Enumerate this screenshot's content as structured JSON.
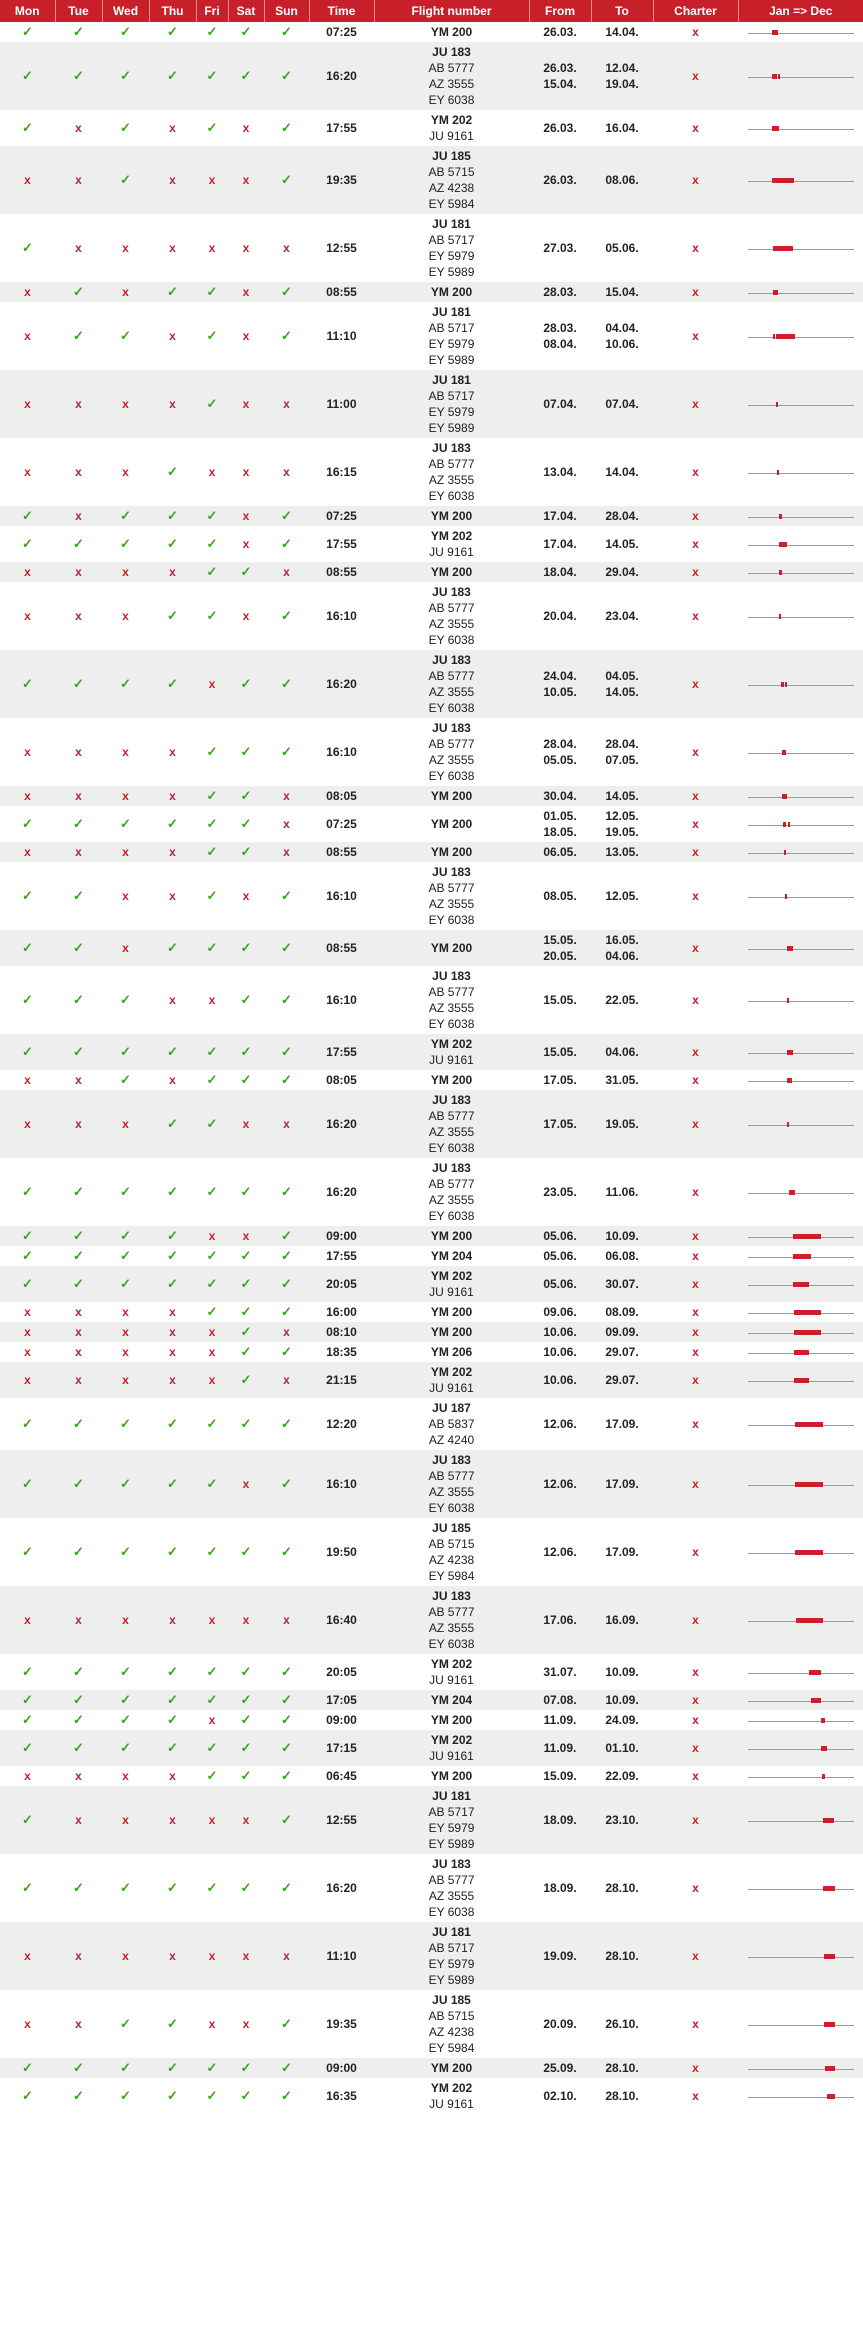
{
  "headers": [
    "Mon",
    "Tue",
    "Wed",
    "Thu",
    "Fri",
    "Sat",
    "Sun",
    "Time",
    "Flight number",
    "From",
    "To",
    "Charter",
    "Jan => Dec"
  ],
  "yes_symbol": "✓",
  "no_symbol": "x",
  "accent_color": "#c8202b",
  "rows": [
    {
      "days": "1111111",
      "time": "07:25",
      "flights": [
        "YM 200"
      ],
      "from": [
        "26.03."
      ],
      "to": [
        "14.04."
      ]
    },
    {
      "days": "1111111",
      "time": "16:20",
      "flights": [
        "JU 183",
        "AB 5777",
        "AZ 3555",
        "EY 6038"
      ],
      "from": [
        "26.03.",
        "15.04."
      ],
      "to": [
        "12.04.",
        "19.04."
      ]
    },
    {
      "days": "1010101",
      "time": "17:55",
      "flights": [
        "YM 202",
        "JU 9161"
      ],
      "from": [
        "26.03."
      ],
      "to": [
        "16.04."
      ]
    },
    {
      "days": "0010001",
      "time": "19:35",
      "flights": [
        "JU 185",
        "AB 5715",
        "AZ 4238",
        "EY 5984"
      ],
      "from": [
        "26.03."
      ],
      "to": [
        "08.06."
      ]
    },
    {
      "days": "1000000",
      "time": "12:55",
      "flights": [
        "JU 181",
        "AB 5717",
        "EY 5979",
        "EY 5989"
      ],
      "from": [
        "27.03."
      ],
      "to": [
        "05.06."
      ]
    },
    {
      "days": "0101101",
      "time": "08:55",
      "flights": [
        "YM 200"
      ],
      "from": [
        "28.03."
      ],
      "to": [
        "15.04."
      ]
    },
    {
      "days": "0110101",
      "time": "11:10",
      "flights": [
        "JU 181",
        "AB 5717",
        "EY 5979",
        "EY 5989"
      ],
      "from": [
        "28.03.",
        "08.04."
      ],
      "to": [
        "04.04.",
        "10.06."
      ]
    },
    {
      "days": "0000100",
      "time": "11:00",
      "flights": [
        "JU 181",
        "AB 5717",
        "EY 5979",
        "EY 5989"
      ],
      "from": [
        "07.04."
      ],
      "to": [
        "07.04."
      ]
    },
    {
      "days": "0001000",
      "time": "16:15",
      "flights": [
        "JU 183",
        "AB 5777",
        "AZ 3555",
        "EY 6038"
      ],
      "from": [
        "13.04."
      ],
      "to": [
        "14.04."
      ]
    },
    {
      "days": "1011101",
      "time": "07:25",
      "flights": [
        "YM 200"
      ],
      "from": [
        "17.04."
      ],
      "to": [
        "28.04."
      ]
    },
    {
      "days": "1111101",
      "time": "17:55",
      "flights": [
        "YM 202",
        "JU 9161"
      ],
      "from": [
        "17.04."
      ],
      "to": [
        "14.05."
      ]
    },
    {
      "days": "0000110",
      "time": "08:55",
      "flights": [
        "YM 200"
      ],
      "from": [
        "18.04."
      ],
      "to": [
        "29.04."
      ]
    },
    {
      "days": "0001101",
      "time": "16:10",
      "flights": [
        "JU 183",
        "AB 5777",
        "AZ 3555",
        "EY 6038"
      ],
      "from": [
        "20.04."
      ],
      "to": [
        "23.04."
      ]
    },
    {
      "days": "1111011",
      "time": "16:20",
      "flights": [
        "JU 183",
        "AB 5777",
        "AZ 3555",
        "EY 6038"
      ],
      "from": [
        "24.04.",
        "10.05."
      ],
      "to": [
        "04.05.",
        "14.05."
      ]
    },
    {
      "days": "0000111",
      "time": "16:10",
      "flights": [
        "JU 183",
        "AB 5777",
        "AZ 3555",
        "EY 6038"
      ],
      "from": [
        "28.04.",
        "05.05."
      ],
      "to": [
        "28.04.",
        "07.05."
      ]
    },
    {
      "days": "0000110",
      "time": "08:05",
      "flights": [
        "YM 200"
      ],
      "from": [
        "30.04."
      ],
      "to": [
        "14.05."
      ]
    },
    {
      "days": "1111110",
      "time": "07:25",
      "flights": [
        "YM 200"
      ],
      "from": [
        "01.05.",
        "18.05."
      ],
      "to": [
        "12.05.",
        "19.05."
      ]
    },
    {
      "days": "0000110",
      "time": "08:55",
      "flights": [
        "YM 200"
      ],
      "from": [
        "06.05."
      ],
      "to": [
        "13.05."
      ]
    },
    {
      "days": "1100101",
      "time": "16:10",
      "flights": [
        "JU 183",
        "AB 5777",
        "AZ 3555",
        "EY 6038"
      ],
      "from": [
        "08.05."
      ],
      "to": [
        "12.05."
      ]
    },
    {
      "days": "1101111",
      "time": "08:55",
      "flights": [
        "YM 200"
      ],
      "from": [
        "15.05.",
        "20.05."
      ],
      "to": [
        "16.05.",
        "04.06."
      ]
    },
    {
      "days": "1110011",
      "time": "16:10",
      "flights": [
        "JU 183",
        "AB 5777",
        "AZ 3555",
        "EY 6038"
      ],
      "from": [
        "15.05."
      ],
      "to": [
        "22.05."
      ]
    },
    {
      "days": "1111111",
      "time": "17:55",
      "flights": [
        "YM 202",
        "JU 9161"
      ],
      "from": [
        "15.05."
      ],
      "to": [
        "04.06."
      ]
    },
    {
      "days": "0010111",
      "time": "08:05",
      "flights": [
        "YM 200"
      ],
      "from": [
        "17.05."
      ],
      "to": [
        "31.05."
      ]
    },
    {
      "days": "0001100",
      "time": "16:20",
      "flights": [
        "JU 183",
        "AB 5777",
        "AZ 3555",
        "EY 6038"
      ],
      "from": [
        "17.05."
      ],
      "to": [
        "19.05."
      ]
    },
    {
      "days": "1111111",
      "time": "16:20",
      "flights": [
        "JU 183",
        "AB 5777",
        "AZ 3555",
        "EY 6038"
      ],
      "from": [
        "23.05."
      ],
      "to": [
        "11.06."
      ]
    },
    {
      "days": "1111001",
      "time": "09:00",
      "flights": [
        "YM 200"
      ],
      "from": [
        "05.06."
      ],
      "to": [
        "10.09."
      ]
    },
    {
      "days": "1111111",
      "time": "17:55",
      "flights": [
        "YM 204"
      ],
      "from": [
        "05.06."
      ],
      "to": [
        "06.08."
      ]
    },
    {
      "days": "1111111",
      "time": "20:05",
      "flights": [
        "YM 202",
        "JU 9161"
      ],
      "from": [
        "05.06."
      ],
      "to": [
        "30.07."
      ]
    },
    {
      "days": "0000111",
      "time": "16:00",
      "flights": [
        "YM 200"
      ],
      "from": [
        "09.06."
      ],
      "to": [
        "08.09."
      ]
    },
    {
      "days": "0000010",
      "time": "08:10",
      "flights": [
        "YM 200"
      ],
      "from": [
        "10.06."
      ],
      "to": [
        "09.09."
      ]
    },
    {
      "days": "0000011",
      "time": "18:35",
      "flights": [
        "YM 206"
      ],
      "from": [
        "10.06."
      ],
      "to": [
        "29.07."
      ]
    },
    {
      "days": "0000010",
      "time": "21:15",
      "flights": [
        "YM 202",
        "JU 9161"
      ],
      "from": [
        "10.06."
      ],
      "to": [
        "29.07."
      ]
    },
    {
      "days": "1111111",
      "time": "12:20",
      "flights": [
        "JU 187",
        "AB 5837",
        "AZ 4240"
      ],
      "from": [
        "12.06."
      ],
      "to": [
        "17.09."
      ]
    },
    {
      "days": "1111101",
      "time": "16:10",
      "flights": [
        "JU 183",
        "AB 5777",
        "AZ 3555",
        "EY 6038"
      ],
      "from": [
        "12.06."
      ],
      "to": [
        "17.09."
      ]
    },
    {
      "days": "1111111",
      "time": "19:50",
      "flights": [
        "JU 185",
        "AB 5715",
        "AZ 4238",
        "EY 5984"
      ],
      "from": [
        "12.06."
      ],
      "to": [
        "17.09."
      ]
    },
    {
      "days": "0000000",
      "time": "16:40",
      "flights": [
        "JU 183",
        "AB 5777",
        "AZ 3555",
        "EY 6038"
      ],
      "from": [
        "17.06."
      ],
      "to": [
        "16.09."
      ]
    },
    {
      "days": "1111111",
      "time": "20:05",
      "flights": [
        "YM 202",
        "JU 9161"
      ],
      "from": [
        "31.07."
      ],
      "to": [
        "10.09."
      ]
    },
    {
      "days": "1111111",
      "time": "17:05",
      "flights": [
        "YM 204"
      ],
      "from": [
        "07.08."
      ],
      "to": [
        "10.09."
      ]
    },
    {
      "days": "1111011",
      "time": "09:00",
      "flights": [
        "YM 200"
      ],
      "from": [
        "11.09."
      ],
      "to": [
        "24.09."
      ]
    },
    {
      "days": "1111111",
      "time": "17:15",
      "flights": [
        "YM 202",
        "JU 9161"
      ],
      "from": [
        "11.09."
      ],
      "to": [
        "01.10."
      ]
    },
    {
      "days": "0000111",
      "time": "06:45",
      "flights": [
        "YM 200"
      ],
      "from": [
        "15.09."
      ],
      "to": [
        "22.09."
      ]
    },
    {
      "days": "1000001",
      "time": "12:55",
      "flights": [
        "JU 181",
        "AB 5717",
        "EY 5979",
        "EY 5989"
      ],
      "from": [
        "18.09."
      ],
      "to": [
        "23.10."
      ]
    },
    {
      "days": "1111111",
      "time": "16:20",
      "flights": [
        "JU 183",
        "AB 5777",
        "AZ 3555",
        "EY 6038"
      ],
      "from": [
        "18.09."
      ],
      "to": [
        "28.10."
      ]
    },
    {
      "days": "0000000",
      "time": "11:10",
      "flights": [
        "JU 181",
        "AB 5717",
        "EY 5979",
        "EY 5989"
      ],
      "from": [
        "19.09."
      ],
      "to": [
        "28.10."
      ]
    },
    {
      "days": "0011001",
      "time": "19:35",
      "flights": [
        "JU 185",
        "AB 5715",
        "AZ 4238",
        "EY 5984"
      ],
      "from": [
        "20.09."
      ],
      "to": [
        "26.10."
      ]
    },
    {
      "days": "1111111",
      "time": "09:00",
      "flights": [
        "YM 200"
      ],
      "from": [
        "25.09."
      ],
      "to": [
        "28.10."
      ]
    },
    {
      "days": "1111111",
      "time": "16:35",
      "flights": [
        "YM 202",
        "JU 9161"
      ],
      "from": [
        "02.10."
      ],
      "to": [
        "28.10."
      ]
    }
  ]
}
